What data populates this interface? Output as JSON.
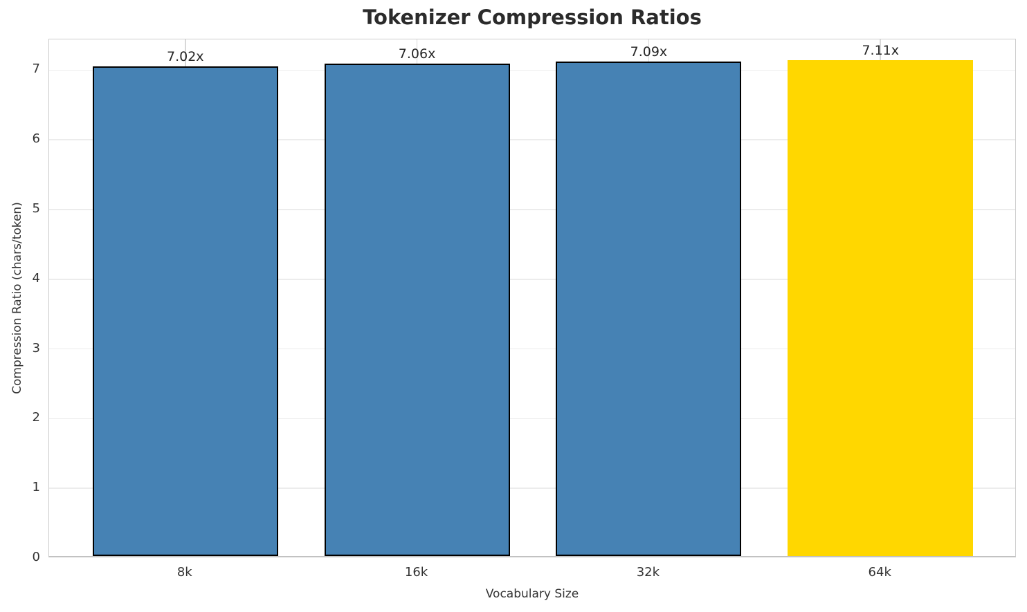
{
  "chart_data": {
    "type": "bar",
    "title": "Tokenizer Compression Ratios",
    "xlabel": "Vocabulary Size",
    "ylabel": "Compression Ratio (chars/token)",
    "categories": [
      "8k",
      "16k",
      "32k",
      "64k"
    ],
    "values": [
      7.02,
      7.06,
      7.09,
      7.11
    ],
    "bar_labels": [
      "7.02x",
      "7.06x",
      "7.09x",
      "7.11x"
    ],
    "bar_colors": [
      "#4682B4",
      "#4682B4",
      "#4682B4",
      "#FFD700"
    ],
    "bar_edge_colors": [
      "#000000",
      "#000000",
      "#000000",
      "none"
    ],
    "highlight_category": "64k",
    "ylim": [
      0,
      7.44
    ],
    "yticks": [
      0,
      1,
      2,
      3,
      4,
      5,
      6,
      7
    ],
    "grid": true,
    "legend": false,
    "colors": {
      "default_bar": "#4682B4",
      "highlight_bar": "#FFD700",
      "bar_edge": "#000000",
      "grid_h": "#ececec",
      "grid_v": "#d8d8d8",
      "spine": "#cccccc",
      "title_text": "#2b2b2b",
      "tick_text": "#333333"
    }
  }
}
